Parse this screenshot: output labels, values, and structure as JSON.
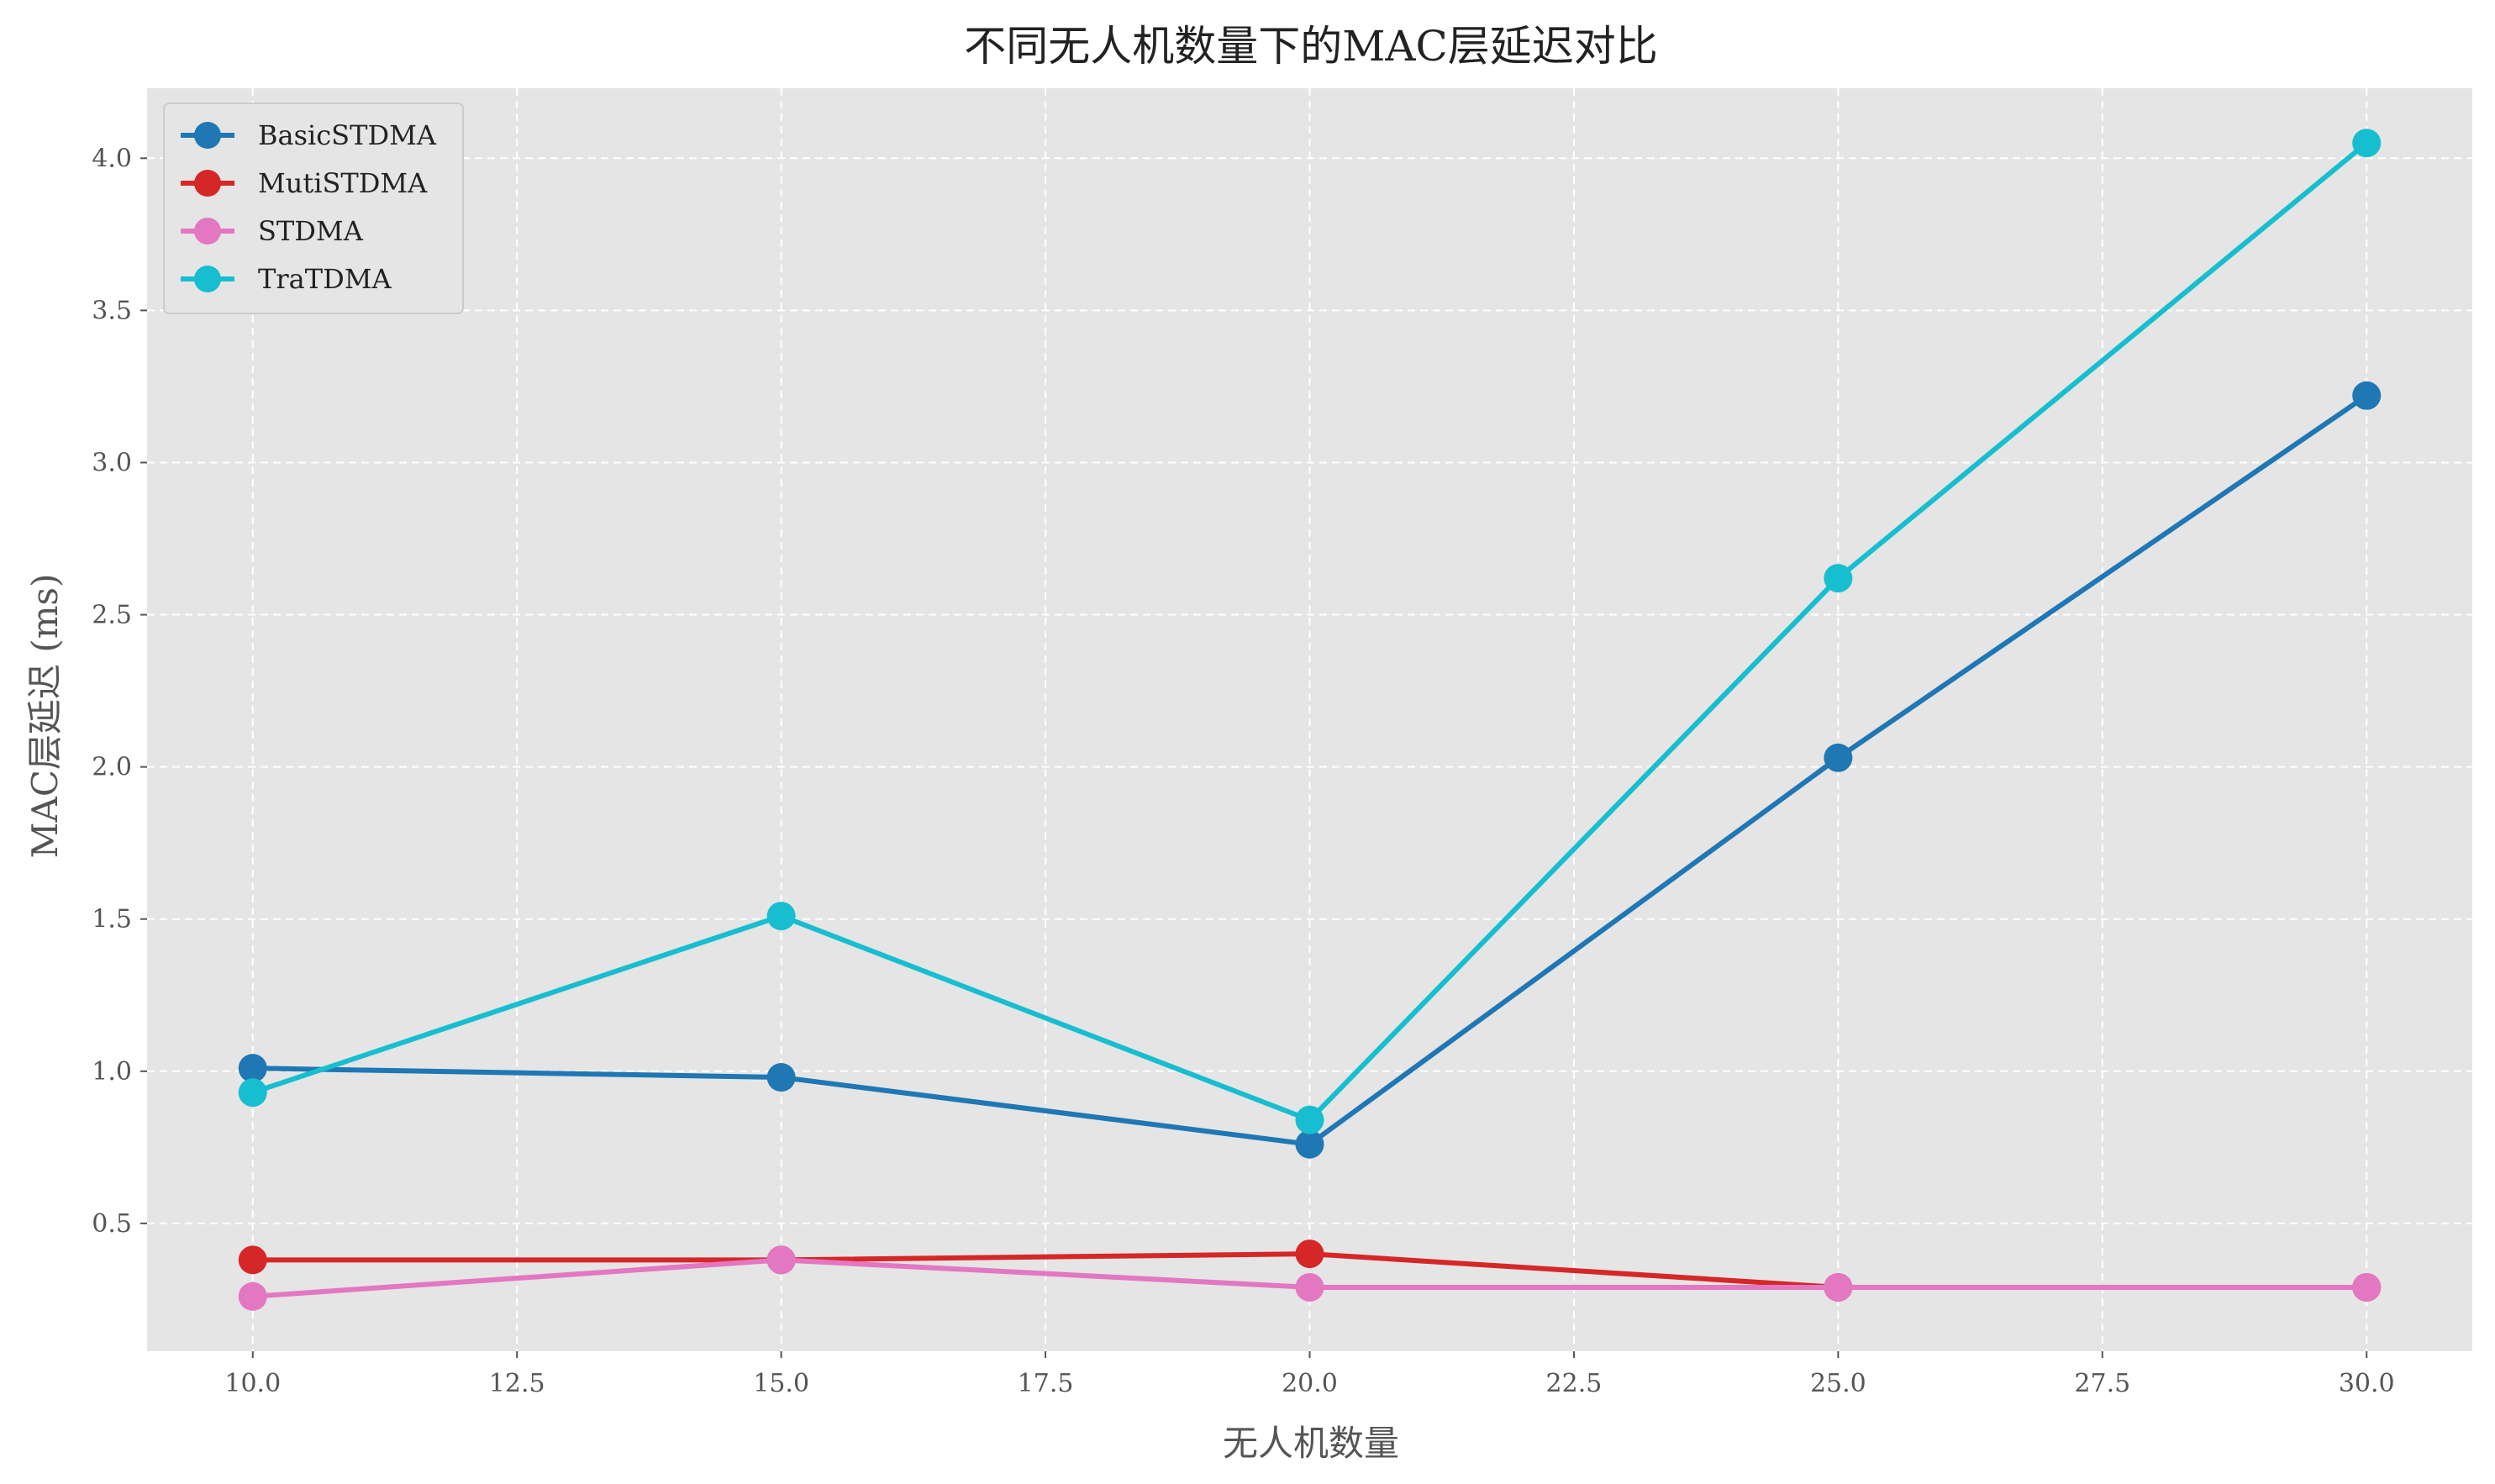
{
  "chart_data": {
    "type": "line",
    "title": "不同无人机数量下的MAC层延迟对比",
    "xlabel": "无人机数量",
    "ylabel": "MAC层延迟 (ms)",
    "x": [
      10,
      15,
      20,
      25,
      30
    ],
    "xlim": [
      9.0,
      31.0
    ],
    "ylim": [
      0.08,
      4.23
    ],
    "x_ticks": [
      "10.0",
      "12.5",
      "15.0",
      "17.5",
      "20.0",
      "22.5",
      "25.0",
      "27.5",
      "30.0"
    ],
    "y_ticks": [
      "0.5",
      "1.0",
      "1.5",
      "2.0",
      "2.5",
      "3.0",
      "3.5",
      "4.0"
    ],
    "grid": true,
    "grid_style": "dashed",
    "background_color": "#e5e5e5",
    "legend_position": "top-left",
    "series": [
      {
        "name": "BasicSTDMA",
        "color": "#1f77b4",
        "values": [
          1.01,
          0.98,
          0.76,
          2.03,
          3.22
        ]
      },
      {
        "name": "MutiSTDMA",
        "color": "#d62728",
        "values": [
          0.38,
          0.38,
          0.4,
          0.29,
          0.29
        ]
      },
      {
        "name": "STDMA",
        "color": "#e377c2",
        "values": [
          0.26,
          0.38,
          0.29,
          0.29,
          0.29
        ]
      },
      {
        "name": "TraTDMA",
        "color": "#17becf",
        "values": [
          0.93,
          1.51,
          0.84,
          2.62,
          4.05
        ]
      }
    ]
  }
}
